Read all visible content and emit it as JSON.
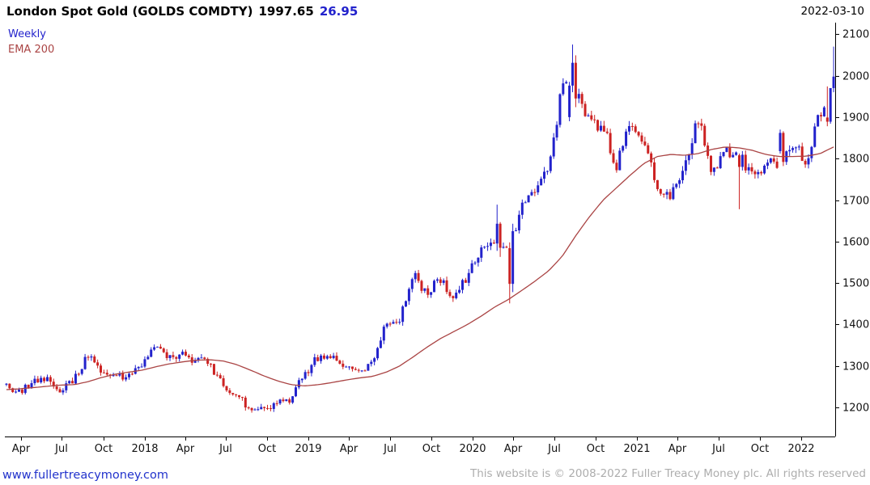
{
  "header": {
    "title": "London Spot Gold (GOLDS COMDTY)",
    "last_price": "1997.65",
    "change": "26.95",
    "date": "2022-03-10"
  },
  "legend": {
    "timeframe": "Weekly",
    "overlay": "EMA 200"
  },
  "footer": {
    "site": "www.fullertreacymoney.com",
    "copyright": "This website is © 2008-2022 Fuller Treacy Money plc. All rights reserved"
  },
  "chart_data": {
    "type": "candlestick",
    "title": "London Spot Gold (GOLDS COMDTY)",
    "timeframe": "Weekly",
    "overlay": "EMA 200",
    "last_close": 1997.65,
    "last_change": 26.95,
    "as_of_date": "2022-03-10",
    "ylim": [
      1130,
      2120
    ],
    "yticks": [
      1200,
      1300,
      1400,
      1500,
      1600,
      1700,
      1800,
      1900,
      2000,
      2100
    ],
    "xticks": [
      {
        "label": "Apr",
        "week": 5.1
      },
      {
        "label": "Jul",
        "week": 18.1
      },
      {
        "label": "Oct",
        "week": 31.3
      },
      {
        "label": "2018",
        "week": 44.4
      },
      {
        "label": "Apr",
        "week": 57.3
      },
      {
        "label": "Jul",
        "week": 70.3
      },
      {
        "label": "Oct",
        "week": 83.4
      },
      {
        "label": "2019",
        "week": 96.6
      },
      {
        "label": "Apr",
        "week": 109.4
      },
      {
        "label": "Jul",
        "week": 122.4
      },
      {
        "label": "Oct",
        "week": 135.6
      },
      {
        "label": "2020",
        "week": 148.7
      },
      {
        "label": "Apr",
        "week": 161.7
      },
      {
        "label": "Jul",
        "week": 174.7
      },
      {
        "label": "Oct",
        "week": 187.9
      },
      {
        "label": "2021",
        "week": 201.0
      },
      {
        "label": "Apr",
        "week": 213.9
      },
      {
        "label": "Jul",
        "week": 226.9
      },
      {
        "label": "Oct",
        "week": 240.0
      },
      {
        "label": "2022",
        "week": 253.1
      }
    ],
    "weeks": 264,
    "anchor_start_month": "2017-02",
    "anchor_interval": "monthly",
    "monthly_closes": [
      1255,
      1232,
      1268,
      1267,
      1242,
      1268,
      1330,
      1288,
      1271,
      1275,
      1303,
      1349,
      1318,
      1325,
      1315,
      1301,
      1253,
      1224,
      1201,
      1192,
      1215,
      1222,
      1282,
      1321,
      1320,
      1292,
      1283,
      1305,
      1409,
      1414,
      1520,
      1472,
      1513,
      1464,
      1517,
      1589,
      1585,
      1577,
      1686,
      1730,
      1771,
      1976,
      1965,
      1886,
      1879,
      1777,
      1898,
      1848,
      1734,
      1708,
      1769,
      1903,
      1770,
      1814,
      1815,
      1757,
      1783,
      1792,
      1829,
      1797,
      1909,
      1997.65
    ],
    "ema200": [
      1243,
      1245,
      1248,
      1251,
      1254,
      1255,
      1262,
      1272,
      1280,
      1285,
      1290,
      1298,
      1305,
      1310,
      1314,
      1315,
      1312,
      1303,
      1290,
      1276,
      1264,
      1255,
      1252,
      1255,
      1260,
      1266,
      1271,
      1275,
      1285,
      1300,
      1322,
      1345,
      1366,
      1383,
      1400,
      1420,
      1442,
      1460,
      1482,
      1505,
      1530,
      1565,
      1615,
      1660,
      1700,
      1730,
      1760,
      1788,
      1805,
      1810,
      1808,
      1812,
      1822,
      1828,
      1826,
      1820,
      1810,
      1805,
      1805,
      1806,
      1812,
      1828
    ],
    "overrides": {
      "156": {
        "close": 1643,
        "high": 1689
      },
      "157": {
        "open": 1643,
        "close": 1585,
        "low": 1563
      },
      "160": {
        "open": 1584,
        "high": 1598,
        "low": 1451,
        "close": 1498
      },
      "161": {
        "open": 1498,
        "high": 1643,
        "low": 1478,
        "close": 1625
      },
      "179": {
        "open": 1900,
        "high": 1985,
        "low": 1890,
        "close": 1976
      },
      "180": {
        "open": 1976,
        "high": 2075,
        "low": 1960,
        "close": 2031
      },
      "181": {
        "open": 2031,
        "high": 2049,
        "low": 1924,
        "close": 1945
      },
      "233": {
        "open": 1808,
        "high": 1812,
        "low": 1678,
        "close": 1780
      },
      "246": {
        "open": 1818,
        "high": 1870,
        "low": 1812,
        "close": 1862
      },
      "247": {
        "open": 1862,
        "high": 1866,
        "low": 1782,
        "close": 1792
      },
      "261": {
        "open": 1899,
        "high": 1974,
        "low": 1878,
        "close": 1889
      },
      "262": {
        "open": 1889,
        "high": 1945,
        "low": 1884,
        "close": 1970
      },
      "263": {
        "open": 1970,
        "high": 2070,
        "low": 1960,
        "close": 1997.65
      }
    },
    "colors": {
      "up": "#2222cc",
      "down": "#cc2222",
      "ema": "#aa4444",
      "axis": "#000000",
      "label": "#111111"
    },
    "legend_position": "top-left",
    "grid": false,
    "y_axis_side": "right"
  }
}
